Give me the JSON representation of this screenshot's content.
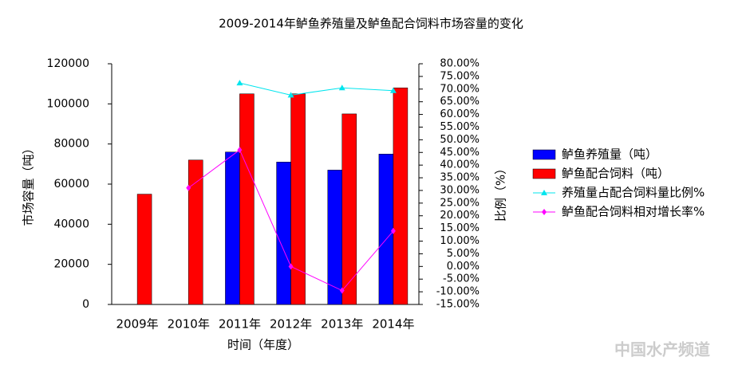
{
  "chart_data": {
    "type": "bar",
    "title": "2009-2014年鲈鱼养殖量及鲈鱼配合饲料市场容量的变化",
    "x_label": "时间（年度）",
    "y_label": "市场容量（吨）",
    "y2_label": "比例（%）",
    "watermark": "中国水产频道",
    "categories": [
      "2009年",
      "2010年",
      "2011年",
      "2012年",
      "2013年",
      "2014年"
    ],
    "series": [
      {
        "name": "鲈鱼养殖量（吨）",
        "type": "bar",
        "color": "#0000ff",
        "values": [
          null,
          null,
          76000,
          71000,
          67000,
          75000
        ]
      },
      {
        "name": "鲈鱼配合饲料（吨）",
        "type": "bar",
        "color": "#ff0000",
        "values": [
          55000,
          72000,
          105000,
          105000,
          95000,
          108000
        ]
      },
      {
        "name": "养殖量占配合饲料量比例%",
        "type": "line",
        "marker": "triangle",
        "axis": "y2",
        "color": "#00e5ee",
        "values": [
          null,
          null,
          72.4,
          67.6,
          70.5,
          69.4
        ]
      },
      {
        "name": "鲈鱼配合饲料相对增长率%",
        "type": "line",
        "marker": "diamond",
        "axis": "y2",
        "color": "#ff00ff",
        "values": [
          null,
          31,
          46,
          0,
          -9.5,
          14
        ]
      }
    ],
    "ylim": [
      0,
      120000
    ],
    "yticks": [
      0,
      20000,
      40000,
      60000,
      80000,
      100000,
      120000
    ],
    "y2lim": [
      -15,
      80
    ],
    "y2ticks": [
      {
        "value": -15,
        "label": "-15.00%"
      },
      {
        "value": -10,
        "label": "-10.00%"
      },
      {
        "value": -5,
        "label": "-5.00%"
      },
      {
        "value": 0,
        "label": "0.00%"
      },
      {
        "value": 5,
        "label": "5.00%"
      },
      {
        "value": 10,
        "label": "10.00%"
      },
      {
        "value": 15,
        "label": "15.00%"
      },
      {
        "value": 20,
        "label": "20.00%"
      },
      {
        "value": 25,
        "label": "25.00%"
      },
      {
        "value": 30,
        "label": "30.00%"
      },
      {
        "value": 35,
        "label": "35.00%"
      },
      {
        "value": 40,
        "label": "40.00%"
      },
      {
        "value": 45,
        "label": "45.00%"
      },
      {
        "value": 50,
        "label": "50.00%"
      },
      {
        "value": 55,
        "label": "55.00%"
      },
      {
        "value": 60,
        "label": "60.00%"
      },
      {
        "value": 65,
        "label": "65.00%"
      },
      {
        "value": 70,
        "label": "70.00%"
      },
      {
        "value": 75,
        "label": "75.00%"
      },
      {
        "value": 80,
        "label": "80.00%"
      }
    ],
    "legend": "right"
  }
}
